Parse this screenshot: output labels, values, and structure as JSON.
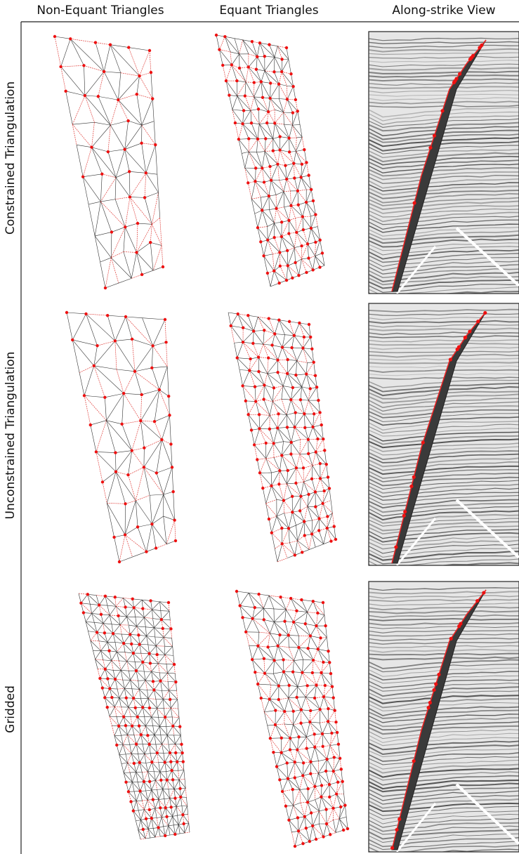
{
  "header": {
    "columns": [
      "Non-Equant Triangles",
      "Equant Triangles",
      "Along-strike View"
    ]
  },
  "rows": [
    "Constrained Triangulation",
    "Unconstrained Triangulation",
    "Gridded"
  ]
}
